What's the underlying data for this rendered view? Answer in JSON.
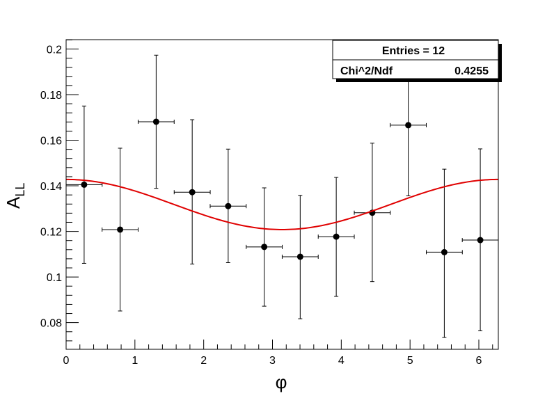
{
  "chart_data": {
    "type": "scatter",
    "xlabel": "φ",
    "ylabel_main": "A",
    "ylabel_sub": "LL",
    "xlim": [
      0,
      6.2832
    ],
    "ylim": [
      0.0683,
      0.2041
    ],
    "x_ticks": [
      0,
      1,
      2,
      3,
      4,
      5,
      6
    ],
    "y_ticks": [
      0.08,
      0.1,
      0.12,
      0.14,
      0.16,
      0.18,
      0.2
    ],
    "x_tick_labels": [
      "0",
      "1",
      "2",
      "3",
      "4",
      "5",
      "6"
    ],
    "y_tick_labels": [
      "0.08",
      "0.1",
      "0.12",
      "0.14",
      "0.16",
      "0.18",
      "0.2"
    ],
    "points": [
      {
        "x": 0.262,
        "y": 0.1405,
        "xerr": 0.262,
        "yerr_low": 0.0345,
        "yerr_high": 0.0345
      },
      {
        "x": 0.785,
        "y": 0.1208,
        "xerr": 0.262,
        "yerr_low": 0.0357,
        "yerr_high": 0.0357
      },
      {
        "x": 1.309,
        "y": 0.1681,
        "xerr": 0.262,
        "yerr_low": 0.0292,
        "yerr_high": 0.0292
      },
      {
        "x": 1.833,
        "y": 0.1372,
        "xerr": 0.262,
        "yerr_low": 0.0315,
        "yerr_high": 0.0318
      },
      {
        "x": 2.356,
        "y": 0.1311,
        "xerr": 0.262,
        "yerr_low": 0.0248,
        "yerr_high": 0.025
      },
      {
        "x": 2.88,
        "y": 0.1132,
        "xerr": 0.262,
        "yerr_low": 0.026,
        "yerr_high": 0.0259
      },
      {
        "x": 3.403,
        "y": 0.1089,
        "xerr": 0.262,
        "yerr_low": 0.0272,
        "yerr_high": 0.0269
      },
      {
        "x": 3.927,
        "y": 0.1177,
        "xerr": 0.262,
        "yerr_low": 0.0262,
        "yerr_high": 0.026
      },
      {
        "x": 4.451,
        "y": 0.1282,
        "xerr": 0.262,
        "yerr_low": 0.0302,
        "yerr_high": 0.0305
      },
      {
        "x": 4.974,
        "y": 0.1666,
        "xerr": 0.262,
        "yerr_low": 0.031,
        "yerr_high": 0.0309
      },
      {
        "x": 5.498,
        "y": 0.1109,
        "xerr": 0.262,
        "yerr_low": 0.0374,
        "yerr_high": 0.0364
      },
      {
        "x": 6.021,
        "y": 0.1162,
        "xerr": 0.262,
        "yerr_low": 0.0398,
        "yerr_high": 0.04
      }
    ],
    "fit": {
      "function": "p0 + p1*cos(x)",
      "p0": 0.1318,
      "p1": 0.011,
      "color": "#e00000"
    },
    "grid": false,
    "legend": "none",
    "marker_color": "#000000"
  },
  "stats_box": {
    "title": "Entries = 12",
    "rows": [
      {
        "label": "Chi^2/Ndf",
        "value": "0.4255"
      }
    ]
  }
}
